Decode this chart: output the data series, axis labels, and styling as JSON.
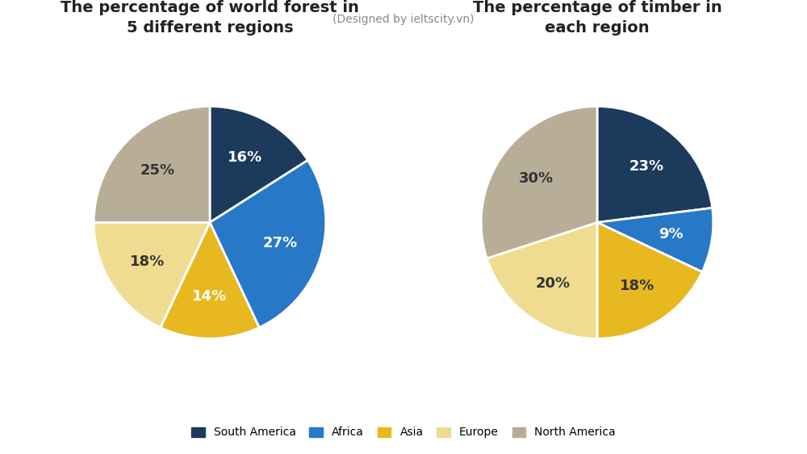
{
  "title_left": "The percentage of world forest in\n5 different regions",
  "title_right": "The percentage of timber in\neach region",
  "subtitle": "(Designed by ieltscity.vn)",
  "regions": [
    "South America",
    "Africa",
    "Asia",
    "Europe",
    "North America"
  ],
  "colors": [
    "#1b3a5c",
    "#2878c8",
    "#e8b820",
    "#f0dc90",
    "#b8ad96"
  ],
  "pie1_values": [
    16,
    27,
    14,
    18,
    25
  ],
  "pie2_values": [
    23,
    9,
    18,
    20,
    30
  ],
  "pie1_labels": [
    "16%",
    "27%",
    "14%",
    "18%",
    "25%"
  ],
  "pie2_labels": [
    "23%",
    "9%",
    "18%",
    "20%",
    "30%"
  ],
  "pie1_label_colors": [
    "#ffffff",
    "#ffffff",
    "#ffffff",
    "#333333",
    "#333333"
  ],
  "pie2_label_colors": [
    "#ffffff",
    "#ffffff",
    "#333333",
    "#333333",
    "#333333"
  ],
  "background_color": "#ffffff",
  "label_fontsize": 13,
  "title_fontsize": 14,
  "subtitle_fontsize": 10,
  "subtitle_color": "#888888",
  "title_color": "#222222"
}
